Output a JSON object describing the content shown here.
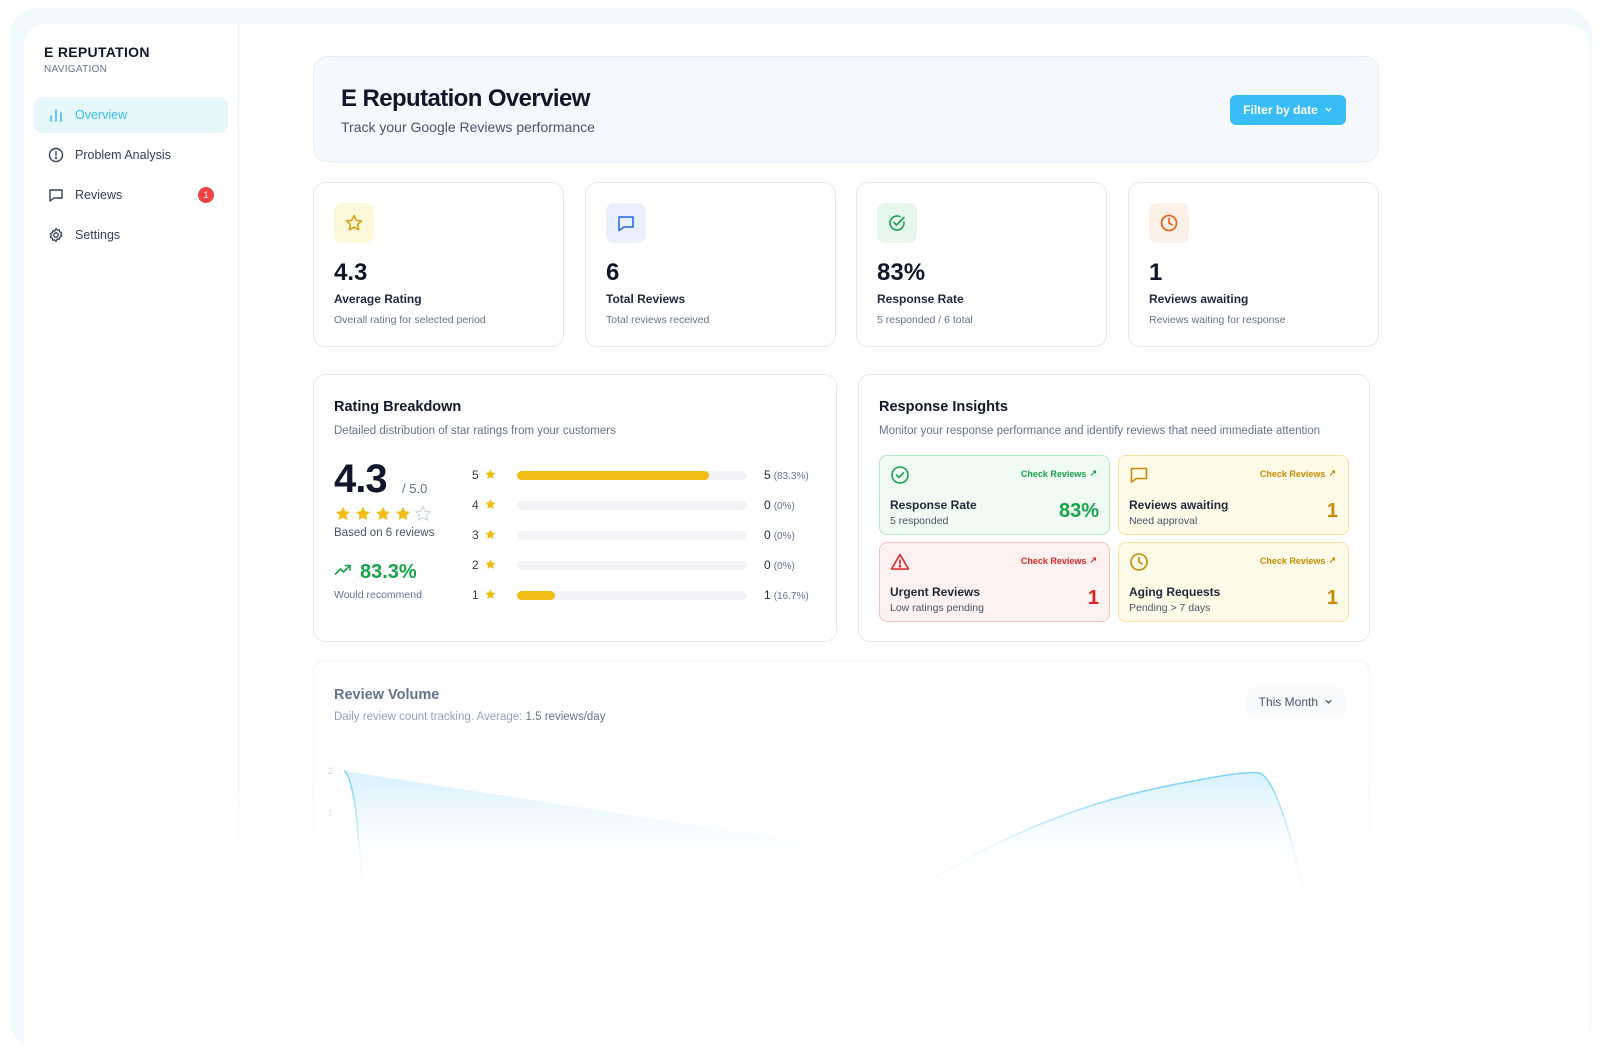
{
  "sidebar": {
    "brand": "E REPUTATION",
    "section": "NAVIGATION",
    "items": [
      {
        "label": "Overview",
        "icon": "bar-chart-icon",
        "active": true
      },
      {
        "label": "Problem Analysis",
        "icon": "alert-circle-icon"
      },
      {
        "label": "Reviews",
        "icon": "message-square-icon",
        "badge": "1"
      },
      {
        "label": "Settings",
        "icon": "gear-icon"
      }
    ]
  },
  "header": {
    "title": "E Reputation Overview",
    "subtitle": "Track your Google Reviews performance",
    "filter_label": "Filter by date"
  },
  "stats": [
    {
      "value": "4.3",
      "label": "Average Rating",
      "desc": "Overall rating for selected period",
      "icon": "star-icon",
      "color": "#d4a10a"
    },
    {
      "value": "6",
      "label": "Total Reviews",
      "desc": "Total reviews received",
      "icon": "message-square-icon",
      "color": "#2563eb"
    },
    {
      "value": "83%",
      "label": "Response Rate",
      "desc": "5 responded / 6 total",
      "icon": "check-circle-icon",
      "color": "#16a34a"
    },
    {
      "value": "1",
      "label": "Reviews awaiting",
      "desc": "Reviews waiting for response",
      "icon": "clock-icon",
      "color": "#ea580c"
    }
  ],
  "rating_breakdown": {
    "title": "Rating Breakdown",
    "subtitle": "Detailed distribution of star ratings from your customers",
    "rating": "4.3",
    "out_of": "/ 5.0",
    "stars_filled": 4,
    "based_on": "Based on 6 reviews",
    "recommend_value": "83.3%",
    "recommend_label": "Would recommend",
    "rows": [
      {
        "stars": "5",
        "count": "5",
        "pct": "(83.3%)",
        "fraction": 0.833
      },
      {
        "stars": "4",
        "count": "0",
        "pct": "(0%)",
        "fraction": 0
      },
      {
        "stars": "3",
        "count": "0",
        "pct": "(0%)",
        "fraction": 0
      },
      {
        "stars": "2",
        "count": "0",
        "pct": "(0%)",
        "fraction": 0
      },
      {
        "stars": "1",
        "count": "1",
        "pct": "(16.7%)",
        "fraction": 0.167
      }
    ]
  },
  "insights": {
    "title": "Response Insights",
    "subtitle": "Monitor your response performance and identify reviews that need immediate attention",
    "check_label": "Check Reviews",
    "cards": [
      {
        "title": "Response Rate",
        "desc": "5 responded",
        "value": "83%",
        "tone": "green",
        "icon": "check-circle-icon"
      },
      {
        "title": "Reviews awaiting",
        "desc": "Need approval",
        "value": "1",
        "tone": "yellow",
        "icon": "message-square-icon"
      },
      {
        "title": "Urgent Reviews",
        "desc": "Low ratings pending",
        "value": "1",
        "tone": "red",
        "icon": "warning-triangle-icon"
      },
      {
        "title": "Aging Requests",
        "desc": "Pending > 7 days",
        "value": "1",
        "tone": "yellow",
        "icon": "clock-icon"
      }
    ]
  },
  "volume": {
    "title": "Review Volume",
    "subtitle_prefix": "Daily review count tracking. Average: ",
    "subtitle_value": "1.5 reviews/day",
    "period": "This Month"
  },
  "chart_data": {
    "type": "area",
    "title": "Review Volume",
    "y_ticks": [
      "2",
      "1"
    ],
    "ylim": [
      0,
      2
    ],
    "note": ""
  }
}
